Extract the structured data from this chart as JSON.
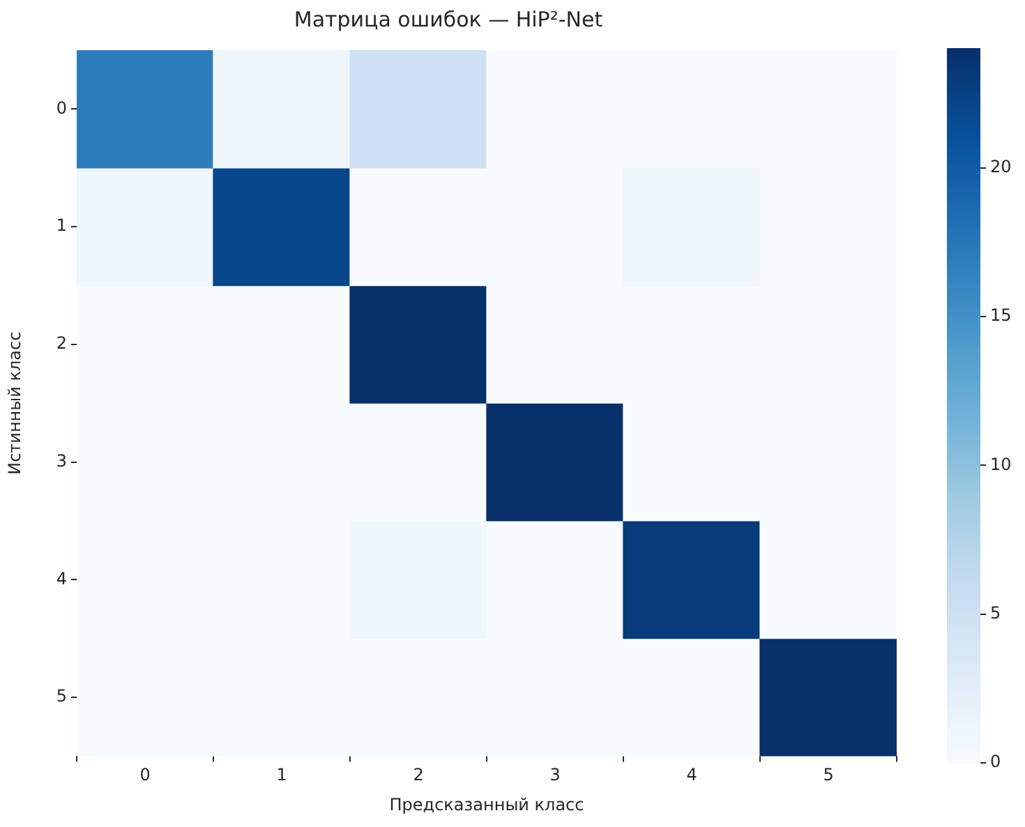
{
  "chart_data": {
    "type": "heatmap",
    "title": "Матрица ошибок — HiP²-Net",
    "xlabel": "Предсказанный класс",
    "ylabel": "Истинный класс",
    "categories": [
      "0",
      "1",
      "2",
      "3",
      "4",
      "5"
    ],
    "y_categories": [
      "0",
      "1",
      "2",
      "3",
      "4",
      "5"
    ],
    "cells": [
      [
        17,
        1,
        5,
        0,
        0,
        0
      ],
      [
        1,
        22,
        0,
        0,
        1,
        0
      ],
      [
        0,
        0,
        24,
        0,
        0,
        0
      ],
      [
        0,
        0,
        0,
        24,
        0,
        0
      ],
      [
        0,
        0,
        1,
        0,
        23,
        0
      ],
      [
        0,
        0,
        0,
        0,
        0,
        24
      ]
    ],
    "clim": [
      0,
      24
    ],
    "cticks": [
      0,
      5,
      10,
      15,
      20
    ]
  }
}
